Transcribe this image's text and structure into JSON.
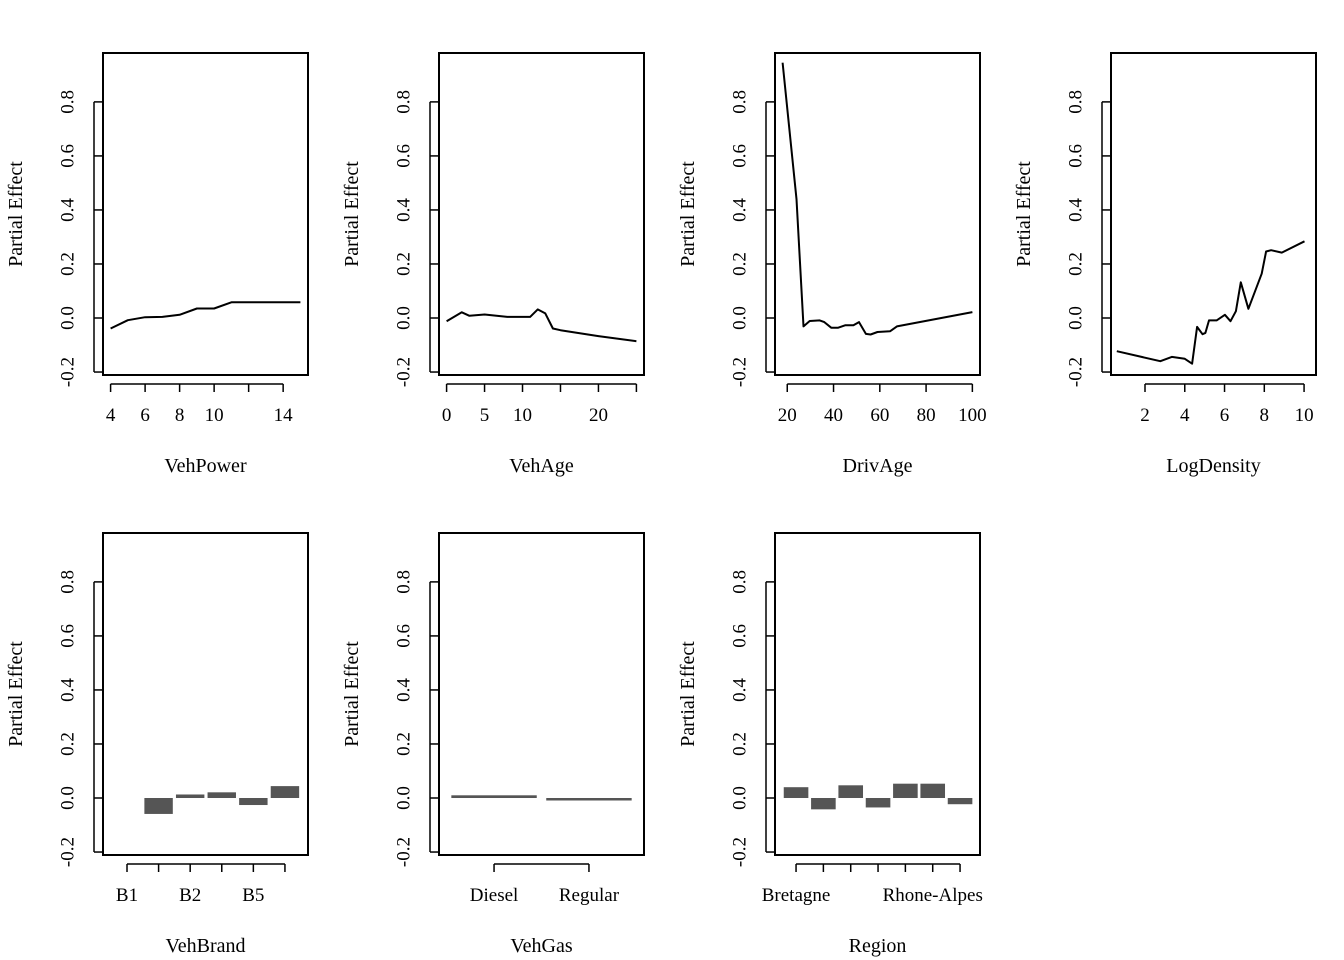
{
  "chart_data": [
    {
      "type": "line",
      "xlabel": "VehPower",
      "ylabel": "Partial Effect",
      "x": [
        4,
        5,
        6,
        7,
        8,
        9,
        10,
        11,
        12,
        13,
        14,
        15
      ],
      "y": [
        -0.039,
        -0.008,
        0.003,
        0.004,
        0.012,
        0.035,
        0.035,
        0.058,
        0.058,
        0.058,
        0.058,
        0.058
      ],
      "xlim": [
        3.56,
        15.44
      ],
      "xticks": [
        4,
        6,
        8,
        10,
        12,
        14
      ],
      "xtick_labels": [
        "4",
        "6",
        "8",
        "10",
        "",
        "14"
      ],
      "ylim": [
        -0.211,
        0.981
      ],
      "yticks": [
        -0.2,
        0.0,
        0.2,
        0.4,
        0.6,
        0.8
      ],
      "ytick_labels": [
        "-0.2",
        "0.0",
        "0.2",
        "0.4",
        "0.6",
        "0.8"
      ],
      "grid": false
    },
    {
      "type": "line",
      "xlabel": "VehAge",
      "ylabel": "Partial Effect",
      "x": [
        0,
        2,
        3,
        5,
        8,
        10,
        11,
        12,
        13,
        14,
        15,
        20,
        25
      ],
      "y": [
        -0.012,
        0.021,
        0.008,
        0.013,
        0.004,
        0.004,
        0.004,
        0.032,
        0.017,
        -0.039,
        -0.045,
        -0.067,
        -0.086
      ],
      "xlim": [
        -1,
        26
      ],
      "xticks": [
        0,
        5,
        10,
        15,
        20,
        25
      ],
      "xtick_labels": [
        "0",
        "5",
        "10",
        "",
        "20",
        ""
      ],
      "ylim": [
        -0.211,
        0.981
      ],
      "yticks": [
        -0.2,
        0.0,
        0.2,
        0.4,
        0.6,
        0.8
      ],
      "ytick_labels": [
        "-0.2",
        "0.0",
        "0.2",
        "0.4",
        "0.6",
        "0.8"
      ],
      "grid": false
    },
    {
      "type": "line",
      "xlabel": "DrivAge",
      "ylabel": "Partial Effect",
      "x": [
        18,
        24,
        27,
        29.7,
        34,
        36,
        39,
        42,
        45,
        48.6,
        51,
        54,
        56,
        59,
        64.5,
        67.4,
        100
      ],
      "y": [
        0.945,
        0.44,
        -0.031,
        -0.011,
        -0.009,
        -0.015,
        -0.036,
        -0.036,
        -0.027,
        -0.027,
        -0.015,
        -0.059,
        -0.061,
        -0.052,
        -0.049,
        -0.031,
        0.022
      ],
      "xlim": [
        14.7,
        103.3
      ],
      "xticks": [
        20,
        40,
        60,
        80,
        100
      ],
      "xtick_labels": [
        "20",
        "40",
        "60",
        "80",
        "100"
      ],
      "ylim": [
        -0.211,
        0.981
      ],
      "yticks": [
        -0.2,
        0.0,
        0.2,
        0.4,
        0.6,
        0.8
      ],
      "ytick_labels": [
        "-0.2",
        "0.0",
        "0.2",
        "0.4",
        "0.6",
        "0.8"
      ],
      "grid": false
    },
    {
      "type": "line",
      "xlabel": "LogDensity",
      "ylabel": "Partial Effect",
      "x": [
        0.58,
        2.77,
        3.35,
        4.0,
        4.37,
        4.62,
        4.89,
        5.04,
        5.22,
        5.6,
        6.02,
        6.3,
        6.57,
        6.82,
        7.2,
        7.87,
        8.09,
        8.34,
        8.88,
        10.02
      ],
      "y": [
        -0.123,
        -0.16,
        -0.144,
        -0.151,
        -0.169,
        -0.033,
        -0.06,
        -0.055,
        -0.009,
        -0.009,
        0.012,
        -0.012,
        0.025,
        0.132,
        0.034,
        0.164,
        0.246,
        0.251,
        0.242,
        0.284
      ],
      "xlim": [
        0.29,
        10.6
      ],
      "xticks": [
        2,
        4,
        6,
        8,
        10
      ],
      "xtick_labels": [
        "2",
        "4",
        "6",
        "8",
        "10"
      ],
      "ylim": [
        -0.211,
        0.981
      ],
      "yticks": [
        -0.2,
        0.0,
        0.2,
        0.4,
        0.6,
        0.8
      ],
      "ytick_labels": [
        "-0.2",
        "0.0",
        "0.2",
        "0.4",
        "0.6",
        "0.8"
      ],
      "grid": false
    },
    {
      "type": "bar",
      "xlabel": "VehBrand",
      "ylabel": "Partial Effect",
      "tick_labels": [
        "B1",
        "",
        "B2",
        "",
        "B5",
        ""
      ],
      "values": [
        0,
        -0.059,
        0.013,
        0.021,
        -0.026,
        0.044
      ],
      "xlim": [
        0.24,
        6.73
      ],
      "ylim": [
        -0.211,
        0.981
      ],
      "yticks": [
        -0.2,
        0.0,
        0.2,
        0.4,
        0.6,
        0.8
      ],
      "ytick_labels": [
        "-0.2",
        "0.0",
        "0.2",
        "0.4",
        "0.6",
        "0.8"
      ],
      "bar_color": "#555555",
      "grid": false
    },
    {
      "type": "bar",
      "xlabel": "VehGas",
      "ylabel": "Partial Effect",
      "tick_labels": [
        "Diesel",
        "Regular"
      ],
      "values": [
        0.01,
        -0.008
      ],
      "xlim": [
        0.42,
        2.58
      ],
      "ylim": [
        -0.211,
        0.981
      ],
      "yticks": [
        -0.2,
        0.0,
        0.2,
        0.4,
        0.6,
        0.8
      ],
      "ytick_labels": [
        "-0.2",
        "0.0",
        "0.2",
        "0.4",
        "0.6",
        "0.8"
      ],
      "bar_color": "#555555",
      "grid": false
    },
    {
      "type": "bar",
      "xlabel": "Region",
      "ylabel": "Partial Effect",
      "tick_labels": [
        "Bretagne",
        "",
        "",
        "",
        "",
        "Rhone-Alpes",
        ""
      ],
      "values": [
        0.04,
        -0.042,
        0.047,
        -0.035,
        0.053,
        0.053,
        -0.023
      ],
      "xlim": [
        0.23,
        7.73
      ],
      "ylim": [
        -0.211,
        0.981
      ],
      "yticks": [
        -0.2,
        0.0,
        0.2,
        0.4,
        0.6,
        0.8
      ],
      "ytick_labels": [
        "-0.2",
        "0.0",
        "0.2",
        "0.4",
        "0.6",
        "0.8"
      ],
      "bar_color": "#555555",
      "grid": false
    }
  ]
}
